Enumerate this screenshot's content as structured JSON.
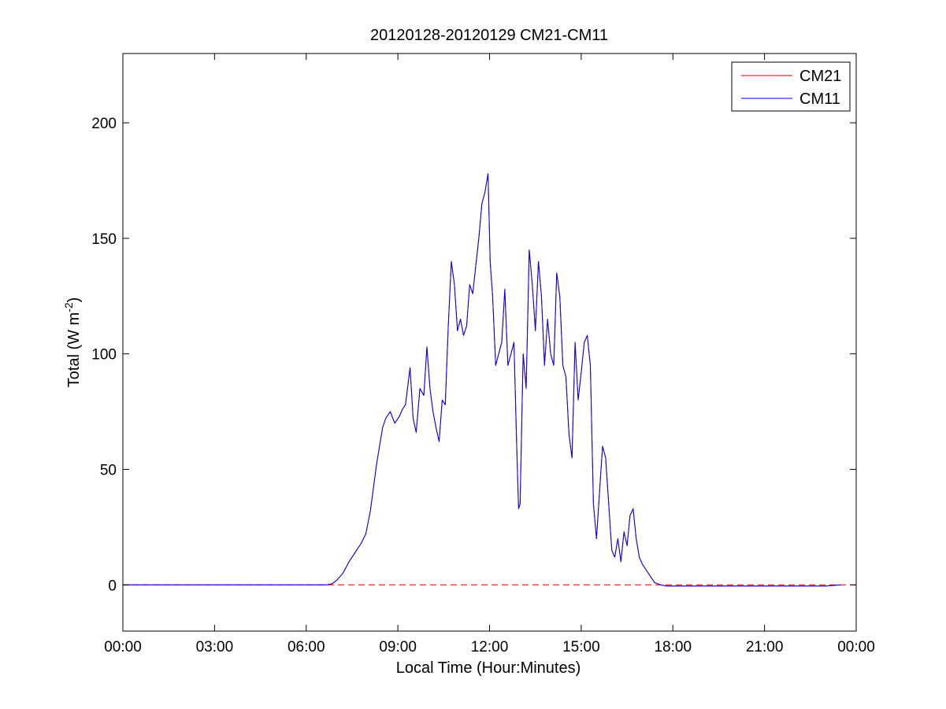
{
  "chart_data": {
    "type": "line",
    "title": "20120128-20120129 CM21-CM11",
    "xlabel": "Local Time (Hour:Minutes)",
    "ylabel": "Total (W m",
    "ylabel_sup": "-2",
    "ylabel_close": ")",
    "xlim": [
      0,
      24
    ],
    "ylim": [
      -20,
      230
    ],
    "xticks": [
      0,
      3,
      6,
      9,
      12,
      15,
      18,
      21,
      24
    ],
    "xtick_labels": [
      "00:00",
      "03:00",
      "06:00",
      "09:00",
      "12:00",
      "15:00",
      "18:00",
      "21:00",
      "00:00"
    ],
    "yticks": [
      0,
      50,
      100,
      150,
      200
    ],
    "ytick_labels": [
      "0",
      "50",
      "100",
      "150",
      "200"
    ],
    "grid": false,
    "legend_position": "top-right",
    "zero_line": {
      "y": 0,
      "color": "#cc0000",
      "style": "dashed"
    },
    "series": [
      {
        "name": "CM21",
        "color": "#cc0000"
      },
      {
        "name": "CM11",
        "color": "#0000ff"
      }
    ],
    "x": [
      0,
      3,
      6,
      6.67,
      6.85,
      7.0,
      7.2,
      7.4,
      7.6,
      7.8,
      7.95,
      8.1,
      8.3,
      8.5,
      8.6,
      8.75,
      8.9,
      9.05,
      9.15,
      9.25,
      9.4,
      9.5,
      9.6,
      9.72,
      9.85,
      9.95,
      10.05,
      10.15,
      10.25,
      10.35,
      10.45,
      10.55,
      10.65,
      10.75,
      10.85,
      10.95,
      11.05,
      11.15,
      11.25,
      11.35,
      11.45,
      11.55,
      11.65,
      11.75,
      11.85,
      11.95,
      12.02,
      12.1,
      12.2,
      12.3,
      12.4,
      12.5,
      12.6,
      12.7,
      12.8,
      12.9,
      12.95,
      13.0,
      13.1,
      13.2,
      13.3,
      13.4,
      13.5,
      13.6,
      13.7,
      13.8,
      13.9,
      14.0,
      14.1,
      14.2,
      14.3,
      14.4,
      14.5,
      14.6,
      14.7,
      14.8,
      14.9,
      15.0,
      15.1,
      15.2,
      15.3,
      15.4,
      15.5,
      15.6,
      15.7,
      15.8,
      15.9,
      16.0,
      16.1,
      16.2,
      16.3,
      16.4,
      16.5,
      16.6,
      16.7,
      16.8,
      16.9,
      17.0,
      17.2,
      17.4,
      17.6,
      17.8,
      18.0,
      19.0,
      20.0,
      21.0,
      22.0,
      23.0,
      23.5
    ],
    "y": [
      0,
      0,
      0,
      0,
      0.5,
      2,
      5,
      10,
      14,
      18,
      22,
      32,
      52,
      68,
      72,
      75,
      70,
      73,
      76,
      78,
      94,
      72,
      66,
      85,
      82,
      103,
      85,
      75,
      68,
      62,
      80,
      78,
      112,
      140,
      130,
      110,
      115,
      108,
      112,
      130,
      126,
      138,
      150,
      165,
      170,
      178,
      140,
      125,
      95,
      100,
      105,
      128,
      95,
      100,
      105,
      55,
      33,
      35,
      100,
      85,
      145,
      130,
      110,
      140,
      125,
      95,
      115,
      100,
      95,
      135,
      125,
      95,
      90,
      65,
      55,
      105,
      80,
      92,
      105,
      108,
      95,
      35,
      20,
      40,
      60,
      55,
      35,
      15,
      12,
      20,
      10,
      23,
      17,
      30,
      33,
      20,
      12,
      9,
      5,
      1,
      0,
      -0.5,
      -0.5,
      -0.5,
      -0.5,
      -0.5,
      -0.5,
      -0.5,
      0
    ]
  }
}
